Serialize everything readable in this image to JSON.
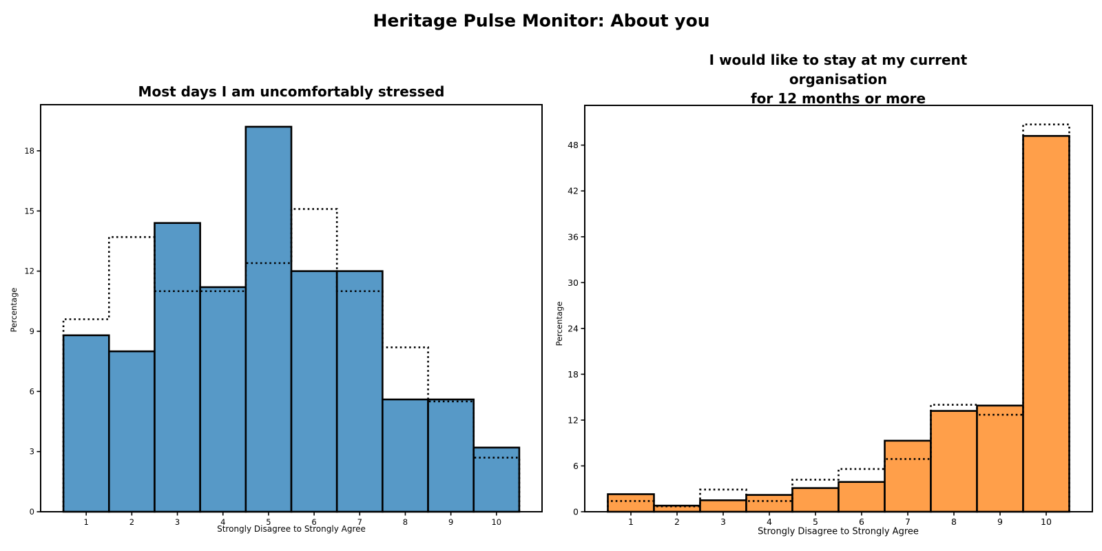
{
  "header": {
    "title": "Heritage Pulse Monitor: About you"
  },
  "chart_data": [
    {
      "type": "bar",
      "title": "Most days I am uncomfortably stressed",
      "xlabel": "Strongly Disagree to Strongly Agree",
      "ylabel": "Percentage",
      "categories": [
        "1",
        "2",
        "3",
        "4",
        "5",
        "6",
        "7",
        "8",
        "9",
        "10"
      ],
      "series": [
        {
          "name": "solid_bars",
          "style": "filled-bars",
          "color": "#5799C7",
          "edge_color": "#000000",
          "values": [
            8.8,
            8.0,
            14.4,
            11.2,
            19.2,
            12.0,
            12.0,
            5.6,
            5.6,
            3.2
          ]
        },
        {
          "name": "dotted_outline",
          "style": "dotted-step",
          "color": "#000000",
          "values": [
            9.6,
            13.7,
            11.0,
            11.0,
            12.4,
            15.1,
            11.0,
            8.2,
            5.5,
            2.7
          ]
        }
      ],
      "yticks": [
        0,
        3,
        6,
        9,
        12,
        15,
        18
      ],
      "ylim": [
        0,
        20.3
      ],
      "xlim": [
        0,
        11
      ],
      "grid": false,
      "legend": null
    },
    {
      "type": "bar",
      "title": "I would like to stay at my current organisation\nfor 12 months or more",
      "xlabel": "Strongly Disagree to Strongly Agree",
      "ylabel": "Percentage",
      "categories": [
        "1",
        "2",
        "3",
        "4",
        "5",
        "6",
        "7",
        "8",
        "9",
        "10"
      ],
      "series": [
        {
          "name": "solid_bars",
          "style": "filled-bars",
          "color": "#FF9F4A",
          "edge_color": "#000000",
          "values": [
            2.3,
            0.8,
            1.5,
            2.2,
            3.1,
            3.9,
            9.3,
            13.2,
            13.9,
            49.2
          ]
        },
        {
          "name": "dotted_outline",
          "style": "dotted-step",
          "color": "#000000",
          "values": [
            1.4,
            0.7,
            2.9,
            1.4,
            4.2,
            5.6,
            6.9,
            14.0,
            12.7,
            50.7
          ]
        }
      ],
      "yticks": [
        0,
        6,
        12,
        18,
        24,
        30,
        36,
        42,
        48
      ],
      "ylim": [
        0,
        53.2
      ],
      "xlim": [
        0,
        11
      ],
      "grid": false,
      "legend": null
    }
  ]
}
